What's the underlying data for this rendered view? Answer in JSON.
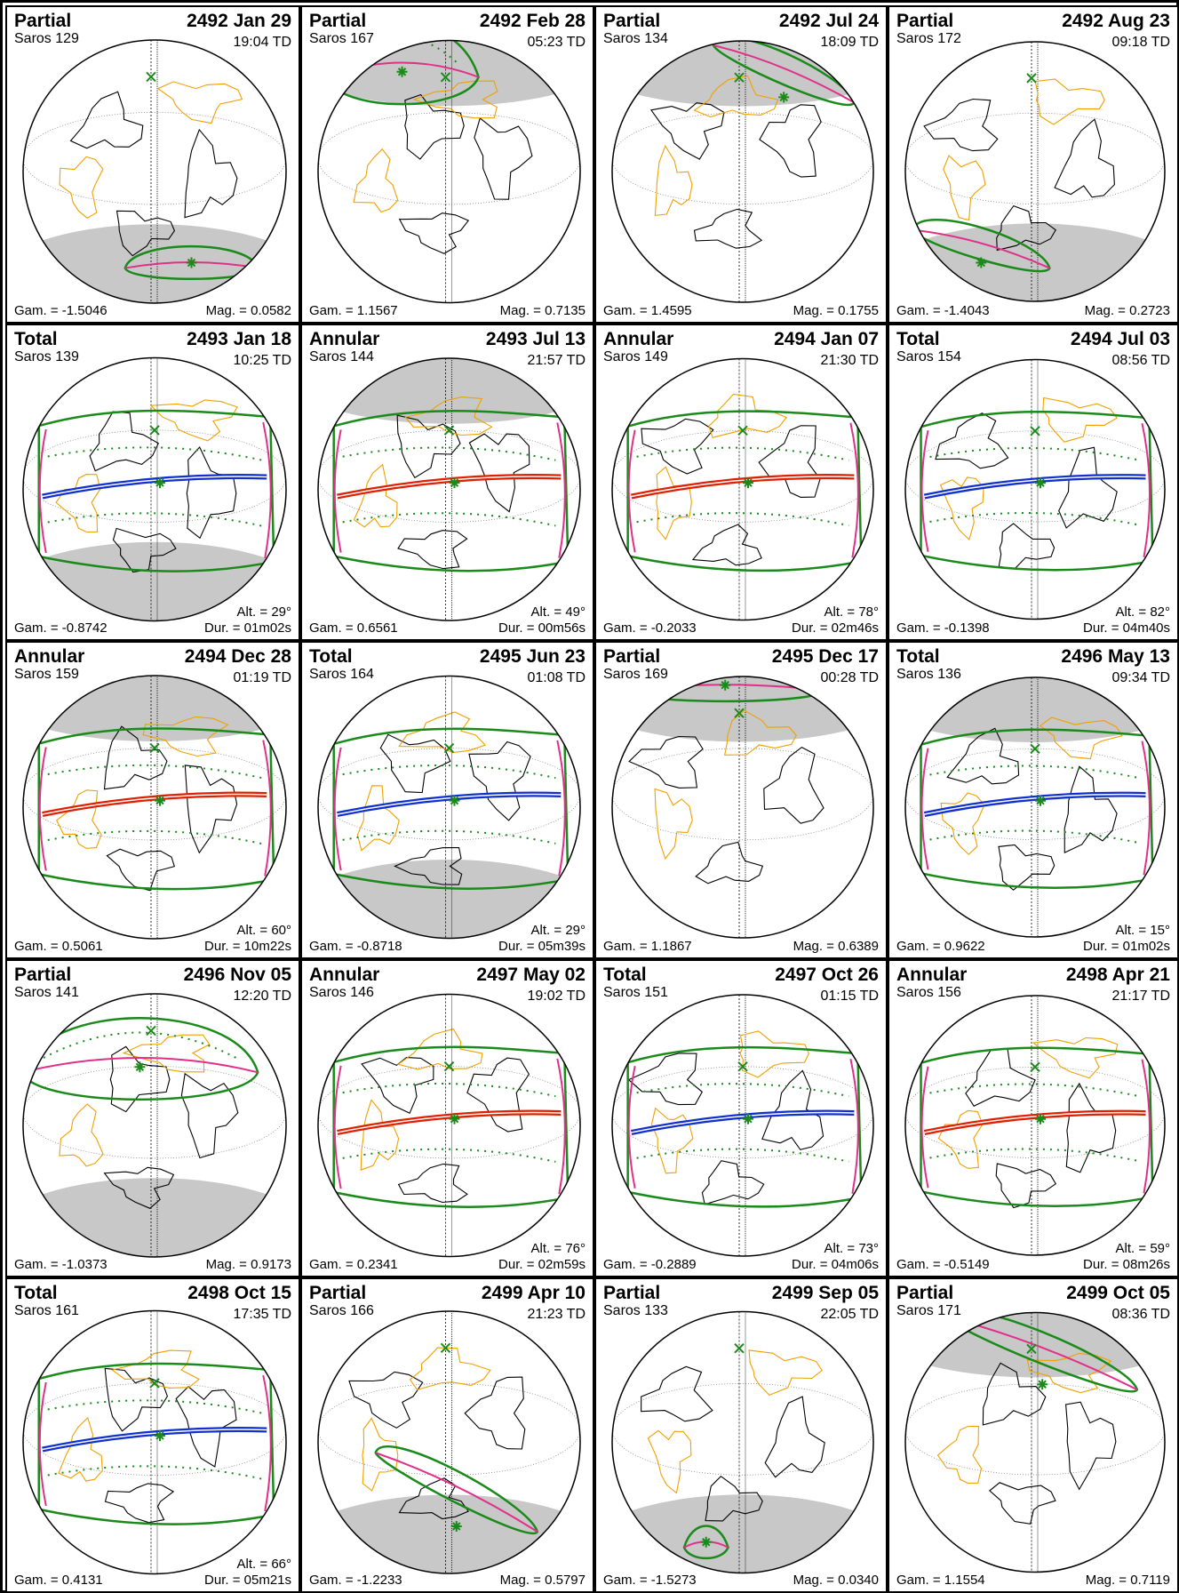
{
  "colors": {
    "land": "#000000",
    "borders": "#f0a000",
    "night": "#c8c8c8",
    "penumbra_limit": "#1a8a1a",
    "rise_set": "#e0308a",
    "annular_path": "#e02000",
    "total_path": "#1030d0"
  },
  "eclipses": [
    {
      "type": "Partial",
      "date": "2492 Jan 29",
      "saros": "Saros 129",
      "time": "19:04 TD",
      "gamma": "Gam. = -1.5046",
      "mag": "Mag. = 0.0582"
    },
    {
      "type": "Partial",
      "date": "2492 Feb 28",
      "saros": "Saros 167",
      "time": "05:23 TD",
      "gamma": "Gam. = 1.1567",
      "mag": "Mag. = 0.7135"
    },
    {
      "type": "Partial",
      "date": "2492 Jul 24",
      "saros": "Saros 134",
      "time": "18:09 TD",
      "gamma": "Gam. = 1.4595",
      "mag": "Mag. = 0.1755"
    },
    {
      "type": "Partial",
      "date": "2492 Aug 23",
      "saros": "Saros 172",
      "time": "09:18 TD",
      "gamma": "Gam. = -1.4043",
      "mag": "Mag. = 0.2723"
    },
    {
      "type": "Total",
      "date": "2493 Jan 18",
      "saros": "Saros 139",
      "time": "10:25 TD",
      "gamma": "Gam. = -0.8742",
      "alt": "Alt. = 29°",
      "dur": "Dur. = 01m02s"
    },
    {
      "type": "Annular",
      "date": "2493 Jul 13",
      "saros": "Saros 144",
      "time": "21:57 TD",
      "gamma": "Gam. = 0.6561",
      "alt": "Alt. = 49°",
      "dur": "Dur. = 00m56s"
    },
    {
      "type": "Annular",
      "date": "2494 Jan 07",
      "saros": "Saros 149",
      "time": "21:30 TD",
      "gamma": "Gam. = -0.2033",
      "alt": "Alt. = 78°",
      "dur": "Dur. = 02m46s"
    },
    {
      "type": "Total",
      "date": "2494 Jul 03",
      "saros": "Saros 154",
      "time": "08:56 TD",
      "gamma": "Gam. = -0.1398",
      "alt": "Alt. = 82°",
      "dur": "Dur. = 04m40s"
    },
    {
      "type": "Annular",
      "date": "2494 Dec 28",
      "saros": "Saros 159",
      "time": "01:19 TD",
      "gamma": "Gam. = 0.5061",
      "alt": "Alt. = 60°",
      "dur": "Dur. = 10m22s"
    },
    {
      "type": "Total",
      "date": "2495 Jun 23",
      "saros": "Saros 164",
      "time": "01:08 TD",
      "gamma": "Gam. = -0.8718",
      "alt": "Alt. = 29°",
      "dur": "Dur. = 05m39s"
    },
    {
      "type": "Partial",
      "date": "2495 Dec 17",
      "saros": "Saros 169",
      "time": "00:28 TD",
      "gamma": "Gam. = 1.1867",
      "mag": "Mag. = 0.6389"
    },
    {
      "type": "Total",
      "date": "2496 May 13",
      "saros": "Saros 136",
      "time": "09:34 TD",
      "gamma": "Gam. = 0.9622",
      "alt": "Alt. = 15°",
      "dur": "Dur. = 01m02s"
    },
    {
      "type": "Partial",
      "date": "2496 Nov 05",
      "saros": "Saros 141",
      "time": "12:20 TD",
      "gamma": "Gam. = -1.0373",
      "mag": "Mag. = 0.9173"
    },
    {
      "type": "Annular",
      "date": "2497 May 02",
      "saros": "Saros 146",
      "time": "19:02 TD",
      "gamma": "Gam. = 0.2341",
      "alt": "Alt. = 76°",
      "dur": "Dur. = 02m59s"
    },
    {
      "type": "Total",
      "date": "2497 Oct 26",
      "saros": "Saros 151",
      "time": "01:15 TD",
      "gamma": "Gam. = -0.2889",
      "alt": "Alt. = 73°",
      "dur": "Dur. = 04m06s"
    },
    {
      "type": "Annular",
      "date": "2498 Apr 21",
      "saros": "Saros 156",
      "time": "21:17 TD",
      "gamma": "Gam. = -0.5149",
      "alt": "Alt. = 59°",
      "dur": "Dur. = 08m26s"
    },
    {
      "type": "Total",
      "date": "2498 Oct 15",
      "saros": "Saros 161",
      "time": "17:35 TD",
      "gamma": "Gam. = 0.4131",
      "alt": "Alt. = 66°",
      "dur": "Dur. = 05m21s"
    },
    {
      "type": "Partial",
      "date": "2499 Apr 10",
      "saros": "Saros 166",
      "time": "21:23 TD",
      "gamma": "Gam. = -1.2233",
      "mag": "Mag. = 0.5797"
    },
    {
      "type": "Partial",
      "date": "2499 Sep 05",
      "saros": "Saros 133",
      "time": "22:05 TD",
      "gamma": "Gam. = -1.5273",
      "mag": "Mag. = 0.0340"
    },
    {
      "type": "Partial",
      "date": "2499 Oct 05",
      "saros": "Saros 171",
      "time": "08:36 TD",
      "gamma": "Gam. = 1.1554",
      "mag": "Mag. = 0.7119"
    }
  ]
}
